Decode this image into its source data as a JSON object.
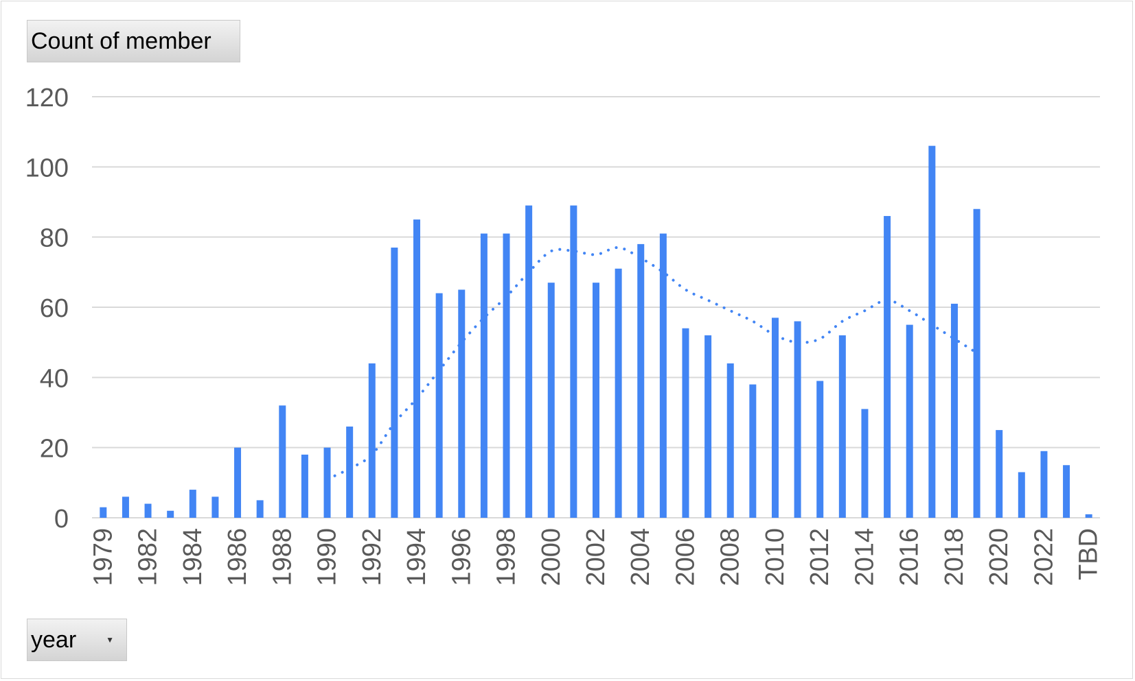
{
  "value_field_button": "Count of member",
  "axis_field_button": "year",
  "dropdown_arrow_icon": "dropdown-arrow-icon",
  "colors": {
    "bar": "#4285F4",
    "trendline": "#4285F4",
    "grid": "#d9d9d9",
    "text": "#595959"
  },
  "chart_data": {
    "type": "bar",
    "title": "",
    "xlabel": "",
    "ylabel": "",
    "ylim": [
      0,
      120
    ],
    "yticks": [
      0,
      20,
      40,
      60,
      80,
      100,
      120
    ],
    "grid": true,
    "legend": "none",
    "trendline": {
      "type": "moving-average",
      "style": "dotted",
      "start_category": "1990",
      "values": [
        11,
        14,
        18,
        27,
        34,
        42,
        50,
        57,
        63,
        70,
        76,
        76,
        75,
        77,
        74,
        70,
        65,
        62,
        59,
        56,
        52,
        50,
        51,
        56,
        59,
        62,
        59,
        55,
        51,
        47
      ]
    },
    "categories": [
      "1979",
      "1981",
      "1982",
      "1983",
      "1984",
      "1985",
      "1986",
      "1987",
      "1988",
      "1989",
      "1990",
      "1991",
      "1992",
      "1993",
      "1994",
      "1995",
      "1996",
      "1997",
      "1998",
      "1999",
      "2000",
      "2001",
      "2002",
      "2003",
      "2004",
      "2005",
      "2006",
      "2007",
      "2008",
      "2009",
      "2010",
      "2011",
      "2012",
      "2013",
      "2014",
      "2015",
      "2016",
      "2017",
      "2018",
      "2019",
      "2020",
      "2021",
      "2022",
      "2023",
      "TBD"
    ],
    "shown_x_labels": [
      "1979",
      "1982",
      "1984",
      "1986",
      "1988",
      "1990",
      "1992",
      "1994",
      "1996",
      "1998",
      "2000",
      "2002",
      "2004",
      "2006",
      "2008",
      "2010",
      "2012",
      "2014",
      "2016",
      "2018",
      "2020",
      "2022",
      "TBD"
    ],
    "series": [
      {
        "values": [
          3,
          6,
          4,
          2,
          8,
          6,
          20,
          5,
          32,
          18,
          20,
          26,
          44,
          77,
          85,
          64,
          65,
          81,
          81,
          89,
          67,
          89,
          67,
          71,
          78,
          81,
          54,
          52,
          44,
          38,
          57,
          56,
          39,
          52,
          31,
          86,
          55,
          106,
          61,
          88,
          25,
          13,
          19,
          15,
          1
        ]
      }
    ]
  }
}
